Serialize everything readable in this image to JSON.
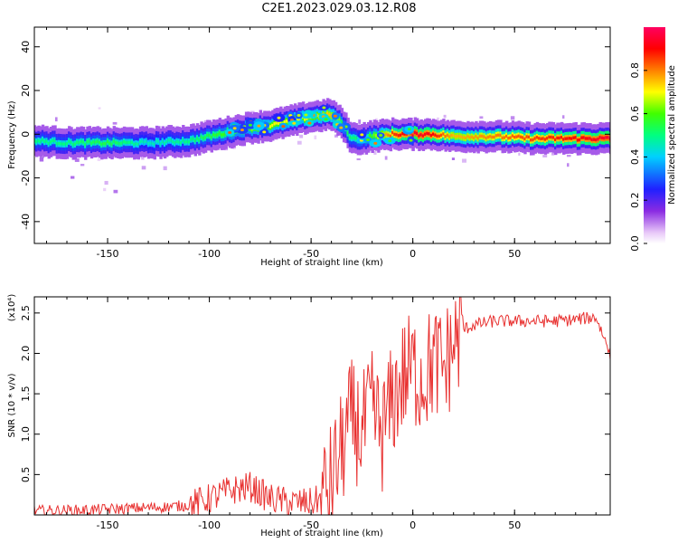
{
  "title": "C2E1.2023.029.03.12.R08",
  "chart_data": [
    {
      "type": "heatmap",
      "xlabel": "Height of straight line (km)",
      "ylabel": "Frequency (Hz)",
      "xlim": [
        -186,
        97
      ],
      "ylim": [
        -50,
        49
      ],
      "xticks": [
        -150,
        -100,
        -50,
        0,
        50
      ],
      "yticks": [
        -40,
        -20,
        0,
        20,
        40
      ],
      "colorbar": {
        "label": "Normalized spectral amplitude",
        "range": [
          0.0,
          1.0
        ],
        "ticks": [
          0.0,
          0.2,
          0.4,
          0.6,
          0.8
        ],
        "colormap": "rainbow (magenta-blue-cyan-green-yellow-red)"
      },
      "ridge": {
        "x": [
          -186,
          -170,
          -150,
          -130,
          -110,
          -100,
          -90,
          -80,
          -70,
          -60,
          -50,
          -40,
          -35,
          -30,
          -25,
          -20,
          -10,
          0,
          10,
          20,
          40,
          60,
          80,
          97
        ],
        "freq": [
          -3,
          -4,
          -4,
          -4,
          -3,
          -1,
          1,
          3,
          4,
          6,
          8,
          9,
          5,
          -2,
          -2,
          -1,
          0,
          0,
          0,
          -1,
          -1,
          -2,
          -2,
          -2
        ],
        "amp": [
          0.5,
          0.5,
          0.55,
          0.45,
          0.5,
          0.55,
          0.6,
          0.65,
          0.7,
          0.7,
          0.7,
          0.75,
          0.6,
          0.5,
          0.55,
          0.6,
          0.85,
          0.95,
          0.9,
          0.75,
          0.8,
          0.85,
          0.9,
          0.95
        ]
      }
    },
    {
      "type": "line",
      "xlabel": "Height of straight line (km)",
      "ylabel": "SNR (10 * v/v)",
      "yscale_note": "(x10⁴)",
      "xlim": [
        -186,
        97
      ],
      "ylim": [
        0,
        2.7
      ],
      "xticks": [
        -150,
        -100,
        -50,
        0,
        50
      ],
      "yticks": [
        0.5,
        1.0,
        1.5,
        2.0,
        2.5
      ],
      "color": "#e8302f",
      "series": [
        {
          "x": [
            -186,
            -160,
            -140,
            -120,
            -110,
            -100,
            -90,
            -80,
            -70,
            -60,
            -50,
            -45,
            -40,
            -35,
            -30,
            -25,
            -20,
            -15,
            -10,
            -5,
            0,
            5,
            10,
            15,
            20,
            25,
            30,
            40,
            50,
            60,
            70,
            80,
            90,
            97
          ],
          "values": [
            0.05,
            0.06,
            0.08,
            0.1,
            0.12,
            0.2,
            0.3,
            0.35,
            0.2,
            0.15,
            0.15,
            0.2,
            0.4,
            0.8,
            1.2,
            1.0,
            1.3,
            1.0,
            1.4,
            1.7,
            1.8,
            1.7,
            1.9,
            1.8,
            2.1,
            2.3,
            2.35,
            2.4,
            2.4,
            2.4,
            2.4,
            2.42,
            2.45,
            2.0
          ]
        }
      ]
    }
  ]
}
